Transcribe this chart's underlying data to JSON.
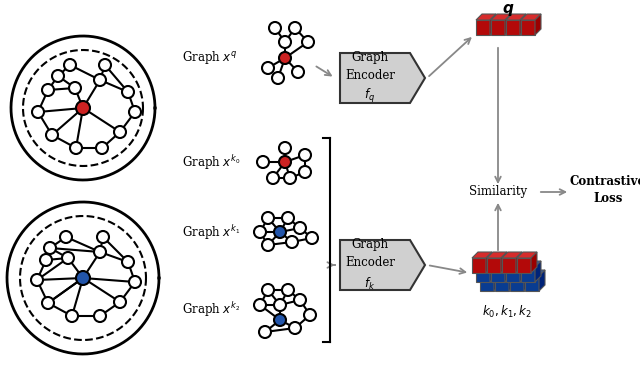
{
  "bg_color": "#ffffff",
  "node_red": "#cc2222",
  "node_blue": "#2255aa",
  "arrow_color": "#888888",
  "red_block_color": "#cc2222",
  "blue_block_color": "#2255aa",
  "block_edge_color": "#555555",
  "encoder_box_color": "#d0d0d0",
  "encoder_box_edge": "#555555",
  "contrastive_text": "Contrastive\nLoss",
  "similarity_text": "Similarity",
  "q_label": "$\\boldsymbol{q}$",
  "k_label": "$\\boldsymbol{k_0, k_1, k_2}$",
  "encoder_q_text": "Graph\nEncoder\n$f_q$",
  "encoder_k_text": "Graph\nEncoder\n$f_k$",
  "graph_xq_label": "Graph $x^q$",
  "graph_xk0_label": "Graph $x^{k_0}$",
  "graph_xk1_label": "Graph $x^{k_1}$",
  "graph_xk2_label": "Graph $x^{k_2}$"
}
